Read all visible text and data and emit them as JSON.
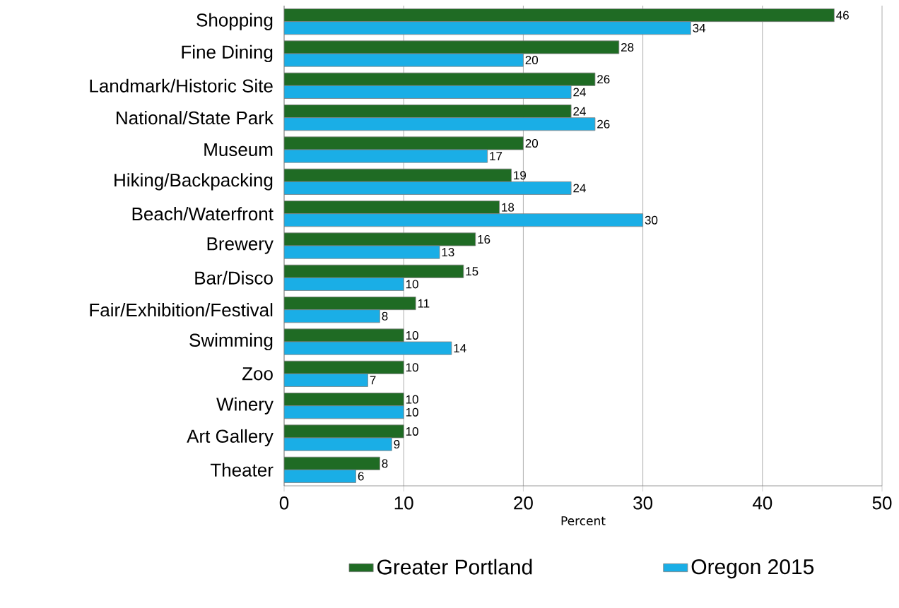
{
  "chart_data": {
    "type": "bar",
    "orientation": "horizontal",
    "xlabel": "Percent",
    "categories": [
      "Shopping",
      "Fine Dining",
      "Landmark/Historic Site",
      "National/State Park",
      "Museum",
      "Hiking/Backpacking",
      "Beach/Waterfront",
      "Brewery",
      "Bar/Disco",
      "Fair/Exhibition/Festival",
      "Swimming",
      "Zoo",
      "Winery",
      "Art Gallery",
      "Theater"
    ],
    "series": [
      {
        "name": "Greater Portland",
        "color": "#1f6b24",
        "values": [
          46,
          28,
          26,
          24,
          20,
          19,
          18,
          16,
          15,
          11,
          10,
          10,
          10,
          10,
          8
        ]
      },
      {
        "name": "Oregon 2015",
        "color": "#1aaee6",
        "values": [
          34,
          20,
          24,
          26,
          17,
          24,
          30,
          13,
          10,
          8,
          14,
          7,
          10,
          9,
          6
        ]
      }
    ],
    "xlim": [
      0,
      50
    ],
    "xticks": [
      0,
      10,
      20,
      30,
      40,
      50
    ],
    "grid": "x",
    "legend": "bottom",
    "data_labels": true
  }
}
